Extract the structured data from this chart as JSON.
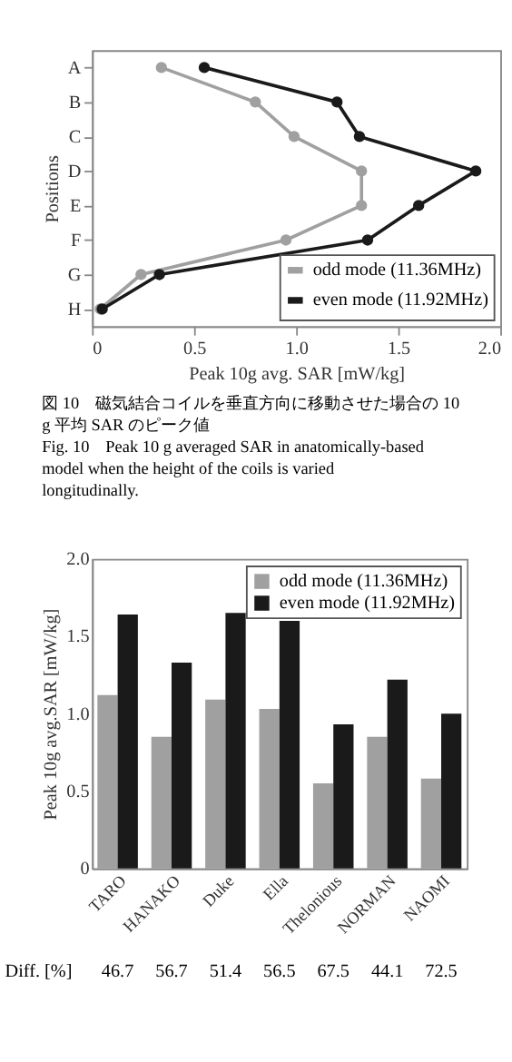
{
  "chart_data": [
    {
      "type": "line",
      "orientation": "horizontal",
      "xlabel": "Peak 10g avg. SAR [mW/kg]",
      "ylabel": "Positions",
      "categories": [
        "A",
        "B",
        "C",
        "D",
        "E",
        "F",
        "G",
        "H"
      ],
      "series": [
        {
          "name": "odd mode (11.36MHz)",
          "color": "#a0a0a0",
          "values": [
            0.34,
            0.8,
            0.99,
            1.32,
            1.32,
            0.95,
            0.24,
            0.04
          ]
        },
        {
          "name": "even mode (11.92MHz)",
          "color": "#1a1a1a",
          "values": [
            0.55,
            1.2,
            1.31,
            1.88,
            1.6,
            1.35,
            0.33,
            0.05
          ]
        }
      ],
      "xlim": [
        0,
        2
      ],
      "xticks": [
        0,
        0.5,
        {
          "value": 1,
          "label": "1.0"
        },
        1.5,
        {
          "value": 2,
          "label": "2.0"
        }
      ],
      "grid": false,
      "legend": "bottom right",
      "marker": "circle",
      "line_style": "solid",
      "annotations": [
        "図 10　磁気結合コイルを垂直方向に移動させた場合の 10 g 平均 SAR のピーク値",
        "Fig. 10　Peak 10 g averaged SAR in anatomically-based model when the height of the coils is varied longitudinally."
      ]
    },
    {
      "type": "bar",
      "ylabel": "Peak 10g avg.SAR [mW/kg]",
      "categories": [
        "TARO",
        "HANAKO",
        "Duke",
        "Ella",
        "Thelonious",
        "NORMAN",
        "NAOMI"
      ],
      "series": [
        {
          "name": "odd mode (11.36MHz)",
          "color": "#a0a0a0",
          "values": [
            1.12,
            0.85,
            1.09,
            1.03,
            0.55,
            0.85,
            0.58
          ]
        },
        {
          "name": "even mode (11.92MHz)",
          "color": "#2a2a2a",
          "values": [
            1.64,
            1.33,
            1.65,
            1.6,
            0.93,
            1.22,
            1.0
          ]
        }
      ],
      "ylim": [
        0,
        2
      ],
      "yticks": [
        0,
        0.5,
        {
          "value": 1,
          "label": "1.0"
        },
        1.5,
        {
          "value": 2,
          "label": "2.0"
        }
      ],
      "grid": false,
      "legend": "top right",
      "annotations": [
        "Diff. [%]",
        "46.7",
        "56.7",
        "51.4",
        "56.5",
        "67.5",
        "44.1",
        "72.5"
      ]
    }
  ]
}
